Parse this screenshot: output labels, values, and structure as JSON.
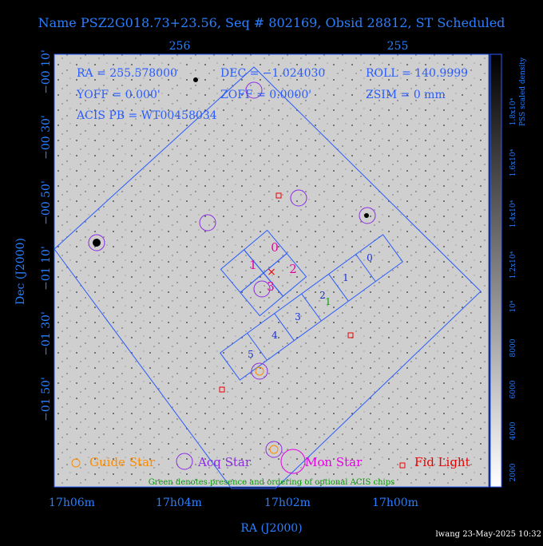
{
  "header": {
    "title": "Name PSZ2G018.73+23.56, Seq # 802169, Obsid 28812, ST Scheduled"
  },
  "info": {
    "ra": "RA = 255.578000",
    "dec": "DEC = −1.024030",
    "roll": "ROLL = 140.9999",
    "yoff": "YOFF =  0.000'",
    "zoff": "ZOFF =  0.0000'",
    "zsim": "ZSIM = 0 mm",
    "acis": "ACIS PB = WT00458034"
  },
  "axes": {
    "top": [
      "256",
      "255"
    ],
    "left": [
      "−00 10'",
      "−00 30'",
      "−00 50'",
      "−01 10'",
      "−01 30'",
      "−01 50'"
    ],
    "bottom": [
      "17h06m",
      "17h04m",
      "17h02m",
      "17h00m"
    ],
    "x_title": "RA (J2000)",
    "y_title": "Dec (J2000)"
  },
  "chips": {
    "i": [
      "0",
      "1",
      "2",
      "3"
    ],
    "s": [
      "0",
      "1",
      "2",
      "3",
      "4",
      "5"
    ],
    "optional": "1"
  },
  "legend": [
    "Guide Star",
    "Acq Star",
    "Mon Star",
    "Fid Light"
  ],
  "note": "Green denotes presence and ordering of optional ACIS chips",
  "colorbar": {
    "title": "PSS scaled density",
    "labels": [
      "2000",
      "4000",
      "6000",
      "8000",
      "10⁴",
      "1.2x10⁴",
      "1.4x10⁴",
      "1.6x10⁴",
      "1.8x10⁴"
    ]
  },
  "footer": "lwang 23-May-2025 10:32"
}
